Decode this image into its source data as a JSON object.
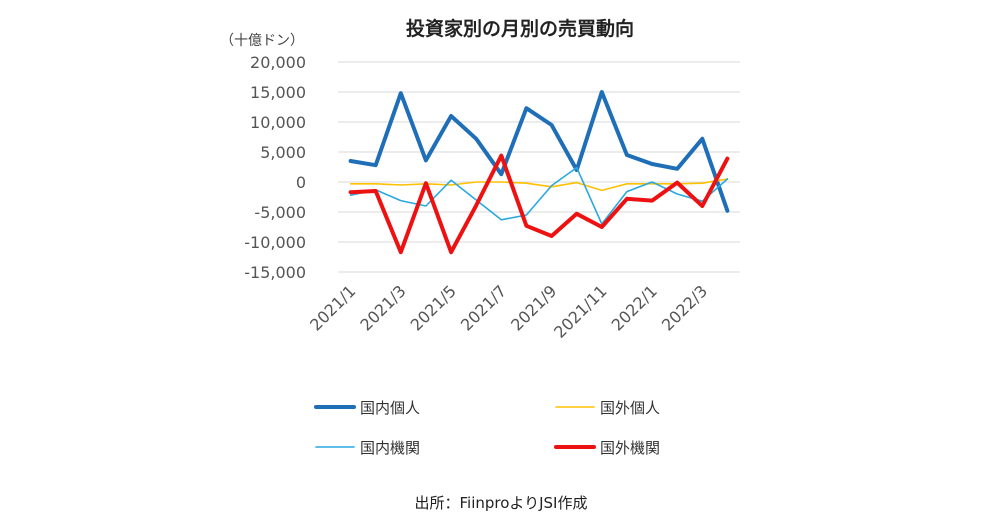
{
  "chart_data": {
    "type": "line",
    "title": "投資家別の月別の売買動向",
    "ylabel": "（十億ドン）",
    "ylim": [
      -15000,
      20000
    ],
    "yticks": [
      20000,
      15000,
      10000,
      5000,
      0,
      -5000,
      -10000,
      -15000
    ],
    "ytick_labels": [
      "20,000",
      "15,000",
      "10,000",
      "5,000",
      "0",
      "-5,000",
      "-10,000",
      "-15,000"
    ],
    "x": [
      "2021/1",
      "2021/2",
      "2021/3",
      "2021/4",
      "2021/5",
      "2021/6",
      "2021/7",
      "2021/8",
      "2021/9",
      "2021/10",
      "2021/11",
      "2021/12",
      "2022/1",
      "2022/2",
      "2022/3",
      "2022/4"
    ],
    "xtick_labels": [
      "2021/1",
      "2021/3",
      "2021/5",
      "2021/7",
      "2021/9",
      "2021/11",
      "2022/1",
      "2022/3"
    ],
    "grid": true,
    "legend_position": "bottom",
    "series": [
      {
        "name": "国内個人",
        "color": "#1f6fb8",
        "width": 4,
        "values": [
          3500,
          2800,
          14800,
          3600,
          11000,
          7200,
          1300,
          12300,
          9500,
          2000,
          15000,
          4500,
          3000,
          2200,
          7200,
          -4800
        ]
      },
      {
        "name": "国外個人",
        "color": "#ffc000",
        "width": 1.6,
        "values": [
          -300,
          -300,
          -500,
          -300,
          -500,
          0,
          0,
          -200,
          -800,
          -100,
          -1400,
          -300,
          -300,
          -300,
          -200,
          500
        ]
      },
      {
        "name": "国内機関",
        "color": "#29a9e0",
        "width": 1.6,
        "values": [
          -2200,
          -1300,
          -3100,
          -4000,
          300,
          -3000,
          -6300,
          -5500,
          -600,
          2400,
          -7000,
          -1600,
          0,
          -2000,
          -3200,
          500
        ]
      },
      {
        "name": "国外機関",
        "color": "#ee1111",
        "width": 4,
        "values": [
          -1700,
          -1500,
          -11700,
          -200,
          -11700,
          -3900,
          4400,
          -7300,
          -9000,
          -5300,
          -7500,
          -2800,
          -3100,
          -100,
          -4000,
          3900
        ]
      }
    ]
  },
  "source_note": "出所：FiinproよりJSI作成"
}
